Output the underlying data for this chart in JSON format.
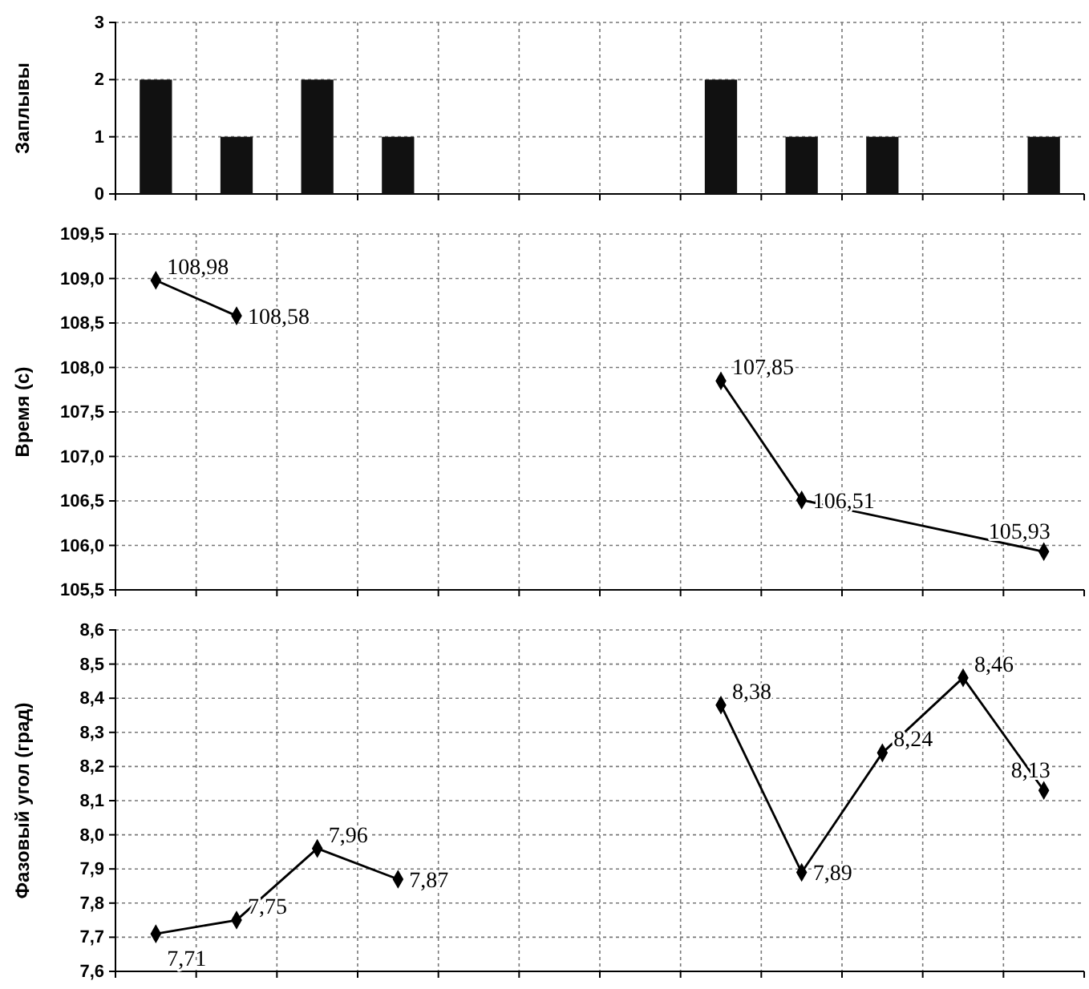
{
  "chart_data": [
    {
      "type": "bar",
      "ylabel": "Заплывы",
      "categories": [
        null,
        null,
        null,
        null,
        null,
        null,
        null,
        null,
        null,
        null,
        null,
        null
      ],
      "values": [
        2,
        1,
        2,
        1,
        null,
        null,
        null,
        2,
        1,
        1,
        null,
        1
      ],
      "color": "#111111",
      "ylim": [
        0,
        3
      ],
      "yticks": [
        0,
        1,
        2,
        3
      ],
      "grid": true,
      "tick_labels": "y"
    },
    {
      "type": "line",
      "ylabel": "Время (с)",
      "categories": [
        null,
        null,
        null,
        null,
        null,
        null,
        null,
        null,
        null,
        null,
        null,
        null
      ],
      "series": [
        {
          "color": "#000000",
          "values": [
            108.98,
            108.58,
            null,
            null,
            null,
            null,
            null,
            null,
            null,
            null,
            null,
            null
          ],
          "value_labels": [
            "108,98",
            "108,58",
            null,
            null,
            null,
            null,
            null,
            null,
            null,
            null,
            null,
            null
          ]
        },
        {
          "color": "#000000",
          "values": [
            null,
            null,
            null,
            null,
            null,
            null,
            null,
            107.85,
            106.51,
            null,
            null,
            105.93
          ],
          "value_labels": [
            null,
            null,
            null,
            null,
            null,
            null,
            null,
            "107,85",
            "106,51",
            null,
            null,
            "105,93"
          ]
        }
      ],
      "marker": "diamond",
      "line_style": "solid",
      "ylim": [
        105.5,
        109.5
      ],
      "yticks": [
        {
          "value": 105.5,
          "label": "105,5"
        },
        {
          "value": 106,
          "label": "106,0"
        },
        {
          "value": 106.5,
          "label": "106,5"
        },
        {
          "value": 107,
          "label": "107,0"
        },
        {
          "value": 107.5,
          "label": "107,5"
        },
        {
          "value": 108,
          "label": "108,0"
        },
        {
          "value": 108.5,
          "label": "108,5"
        },
        {
          "value": 109,
          "label": "109,0"
        },
        {
          "value": 109.5,
          "label": "109,5"
        }
      ],
      "grid": true,
      "tick_labels": "y"
    },
    {
      "type": "line",
      "ylabel": "Фазовый угол (град)",
      "categories": [
        null,
        null,
        null,
        null,
        null,
        null,
        null,
        null,
        null,
        null,
        null,
        null
      ],
      "series": [
        {
          "color": "#000000",
          "values": [
            7.71,
            7.75,
            7.96,
            7.87,
            null,
            null,
            null,
            null,
            null,
            null,
            null,
            null
          ],
          "value_labels": [
            "7,71",
            "7,75",
            "7,96",
            "7,87",
            null,
            null,
            null,
            null,
            null,
            null,
            null,
            null
          ]
        },
        {
          "color": "#000000",
          "values": [
            null,
            null,
            null,
            null,
            null,
            null,
            null,
            8.38,
            7.89,
            8.24,
            8.46,
            8.13
          ],
          "value_labels": [
            null,
            null,
            null,
            null,
            null,
            null,
            null,
            "8,38",
            "7,89",
            "8,24",
            "8,46",
            "8,13"
          ]
        }
      ],
      "marker": "diamond",
      "line_style": "solid",
      "ylim": [
        7.6,
        8.6
      ],
      "yticks": [
        {
          "value": 7.6,
          "label": "7,6"
        },
        {
          "value": 7.7,
          "label": "7,7"
        },
        {
          "value": 7.8,
          "label": "7,8"
        },
        {
          "value": 7.9,
          "label": "7,9"
        },
        {
          "value": 8,
          "label": "8,0"
        },
        {
          "value": 8.1,
          "label": "8,1"
        },
        {
          "value": 8.2,
          "label": "8,2"
        },
        {
          "value": 8.3,
          "label": "8,3"
        },
        {
          "value": 8.4,
          "label": "8,4"
        },
        {
          "value": 8.5,
          "label": "8,5"
        },
        {
          "value": 8.6,
          "label": "8,6"
        }
      ],
      "grid": true,
      "tick_labels": "y"
    }
  ]
}
